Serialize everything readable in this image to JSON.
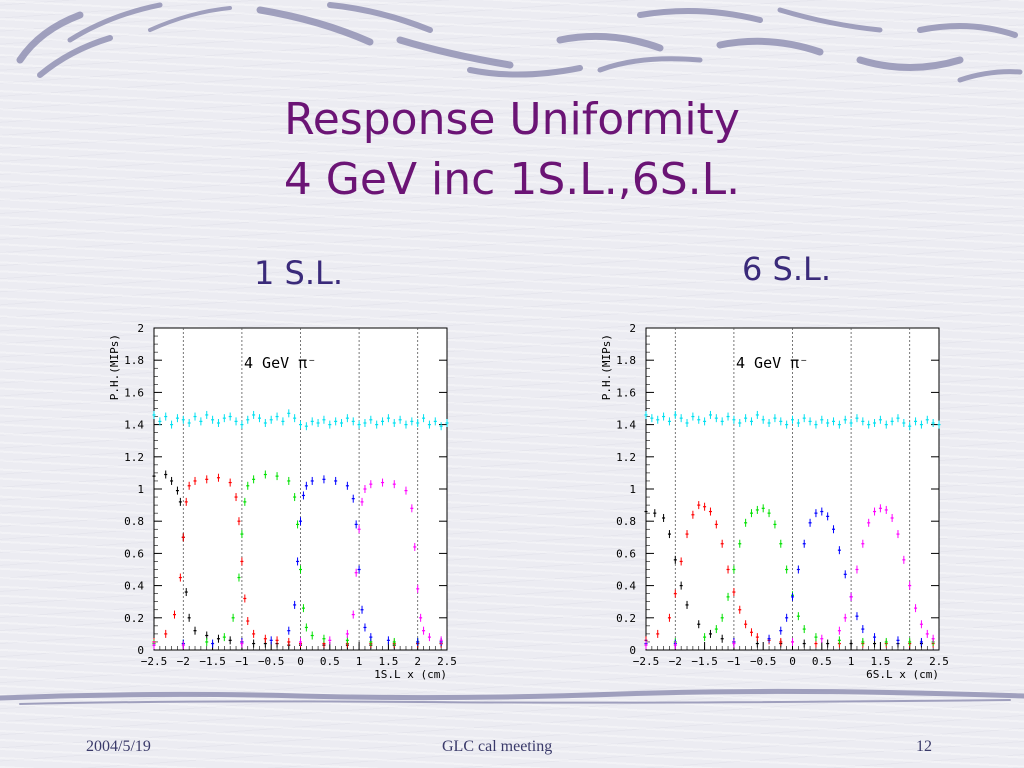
{
  "slide": {
    "title_line1": "Response Uniformity",
    "title_line2": "4 GeV inc 1S.L.,6S.L.",
    "label_left": "1 S.L.",
    "label_right": "6 S.L.",
    "footer": {
      "date": "2004/5/19",
      "center": "GLC cal meeting",
      "page": "12"
    },
    "colors": {
      "title": "#6b1475",
      "label": "#3a2a7a",
      "background": "#ececf2"
    }
  },
  "chart_data": [
    {
      "type": "scatter",
      "annotation": "4 GeV π⁻",
      "xlabel": "1S.L x (cm)",
      "ylabel": "P.H.(MIPs)",
      "xlim": [
        -2.5,
        2.5
      ],
      "ylim": [
        0,
        2
      ],
      "xticks": [
        "-2.5",
        "-2",
        "-1.5",
        "-1",
        "-0.5",
        "0",
        "0.5",
        "1",
        "1.5",
        "2",
        "2.5"
      ],
      "yticks": [
        "0",
        "0.2",
        "0.4",
        "0.6",
        "0.8",
        "1",
        "1.2",
        "1.4",
        "1.6",
        "1.8",
        "2"
      ],
      "dividers": [
        -2.0,
        -1.0,
        0.0,
        1.0,
        2.0
      ],
      "series": [
        {
          "color": "#000000",
          "x": [
            -2.5,
            -2.3,
            -2.2,
            -2.1,
            -2.05,
            -2.0,
            -1.95,
            -1.9,
            -1.8,
            -1.6,
            -1.4,
            -1.2,
            -1.0,
            -0.8,
            -0.6,
            -0.4,
            -0.2,
            0.0,
            0.4,
            0.8,
            1.2,
            1.6,
            2.0,
            2.4
          ],
          "y": [
            1.08,
            1.09,
            1.05,
            0.99,
            0.92,
            0.7,
            0.36,
            0.2,
            0.12,
            0.09,
            0.07,
            0.06,
            0.05,
            0.04,
            0.04,
            0.04,
            0.03,
            0.03,
            0.03,
            0.03,
            0.03,
            0.03,
            0.04,
            0.04
          ]
        },
        {
          "color": "#ff0000",
          "x": [
            -2.5,
            -2.3,
            -2.15,
            -2.05,
            -2.0,
            -1.95,
            -1.9,
            -1.8,
            -1.6,
            -1.4,
            -1.2,
            -1.1,
            -1.05,
            -1.0,
            -0.95,
            -0.9,
            -0.8,
            -0.6,
            -0.4,
            -0.2,
            0.0,
            0.4,
            0.8,
            1.2,
            1.6,
            2.0,
            2.4
          ],
          "y": [
            0.05,
            0.1,
            0.22,
            0.45,
            0.7,
            0.92,
            1.02,
            1.05,
            1.06,
            1.07,
            1.04,
            0.95,
            0.8,
            0.55,
            0.32,
            0.18,
            0.1,
            0.07,
            0.06,
            0.05,
            0.04,
            0.04,
            0.04,
            0.04,
            0.04,
            0.04,
            0.04
          ]
        },
        {
          "color": "#00e000",
          "x": [
            -2.5,
            -2.0,
            -1.6,
            -1.3,
            -1.15,
            -1.05,
            -1.0,
            -0.95,
            -0.9,
            -0.8,
            -0.6,
            -0.4,
            -0.2,
            -0.1,
            -0.05,
            0.0,
            0.05,
            0.1,
            0.2,
            0.4,
            0.8,
            1.2,
            1.6,
            2.0,
            2.4
          ],
          "y": [
            0.04,
            0.04,
            0.05,
            0.08,
            0.2,
            0.45,
            0.72,
            0.92,
            1.02,
            1.06,
            1.09,
            1.08,
            1.05,
            0.95,
            0.78,
            0.5,
            0.26,
            0.14,
            0.09,
            0.07,
            0.06,
            0.05,
            0.05,
            0.05,
            0.05
          ]
        },
        {
          "color": "#0000ff",
          "x": [
            -2.5,
            -2.0,
            -1.5,
            -1.0,
            -0.5,
            -0.2,
            -0.1,
            -0.05,
            0.0,
            0.05,
            0.1,
            0.2,
            0.4,
            0.6,
            0.8,
            0.9,
            0.95,
            1.0,
            1.05,
            1.1,
            1.2,
            1.5,
            2.0,
            2.4
          ],
          "y": [
            0.03,
            0.04,
            0.04,
            0.05,
            0.06,
            0.12,
            0.28,
            0.55,
            0.8,
            0.96,
            1.02,
            1.05,
            1.06,
            1.05,
            1.02,
            0.94,
            0.78,
            0.5,
            0.25,
            0.14,
            0.08,
            0.06,
            0.05,
            0.05
          ]
        },
        {
          "color": "#ff00ff",
          "x": [
            -2.5,
            -2.0,
            -1.0,
            0.0,
            0.5,
            0.8,
            0.9,
            0.95,
            1.0,
            1.05,
            1.1,
            1.2,
            1.4,
            1.6,
            1.8,
            1.9,
            1.95,
            2.0,
            2.05,
            2.1,
            2.2,
            2.4
          ],
          "y": [
            0.03,
            0.03,
            0.04,
            0.05,
            0.06,
            0.1,
            0.22,
            0.48,
            0.75,
            0.92,
            1.0,
            1.03,
            1.04,
            1.03,
            0.99,
            0.88,
            0.64,
            0.38,
            0.2,
            0.12,
            0.08,
            0.06
          ]
        },
        {
          "color": "#00e0f0",
          "x": [
            -2.5,
            -2.4,
            -2.3,
            -2.2,
            -2.1,
            -2.0,
            -1.9,
            -1.8,
            -1.7,
            -1.6,
            -1.5,
            -1.4,
            -1.3,
            -1.2,
            -1.1,
            -1.0,
            -0.9,
            -0.8,
            -0.7,
            -0.6,
            -0.5,
            -0.4,
            -0.3,
            -0.2,
            -0.1,
            0.0,
            0.1,
            0.2,
            0.3,
            0.4,
            0.5,
            0.6,
            0.7,
            0.8,
            0.9,
            1.0,
            1.1,
            1.2,
            1.3,
            1.4,
            1.5,
            1.6,
            1.7,
            1.8,
            1.9,
            2.0,
            2.1,
            2.2,
            2.3,
            2.4,
            2.5
          ],
          "y": [
            1.46,
            1.42,
            1.45,
            1.4,
            1.44,
            1.43,
            1.41,
            1.45,
            1.42,
            1.46,
            1.43,
            1.41,
            1.44,
            1.45,
            1.42,
            1.4,
            1.43,
            1.46,
            1.44,
            1.41,
            1.43,
            1.45,
            1.42,
            1.47,
            1.44,
            1.4,
            1.39,
            1.42,
            1.41,
            1.43,
            1.4,
            1.42,
            1.41,
            1.44,
            1.42,
            1.4,
            1.41,
            1.43,
            1.4,
            1.42,
            1.44,
            1.41,
            1.43,
            1.4,
            1.42,
            1.41,
            1.44,
            1.4,
            1.42,
            1.39,
            1.41
          ]
        }
      ]
    },
    {
      "type": "scatter",
      "annotation": "4 GeV π⁻",
      "xlabel": "6S.L x (cm)",
      "ylabel": "P.H.(MIPs)",
      "xlim": [
        -2.5,
        2.5
      ],
      "ylim": [
        0,
        2
      ],
      "xticks": [
        "-2.5",
        "-2",
        "-1.5",
        "-1",
        "-0.5",
        "0",
        "0.5",
        "1",
        "1.5",
        "2",
        "2.5"
      ],
      "yticks": [
        "0",
        "0.2",
        "0.4",
        "0.6",
        "0.8",
        "1",
        "1.2",
        "1.4",
        "1.6",
        "1.8",
        "2"
      ],
      "dividers": [
        -2.0,
        -1.0,
        0.0,
        1.0,
        2.0
      ],
      "series": [
        {
          "color": "#000000",
          "x": [
            -2.5,
            -2.35,
            -2.2,
            -2.1,
            -2.0,
            -1.9,
            -1.8,
            -1.6,
            -1.4,
            -1.2,
            -1.0,
            -0.6,
            -0.2,
            0.2,
            0.6,
            1.0,
            1.4,
            1.8,
            2.2
          ],
          "y": [
            0.86,
            0.85,
            0.82,
            0.72,
            0.56,
            0.4,
            0.28,
            0.16,
            0.1,
            0.07,
            0.05,
            0.04,
            0.04,
            0.04,
            0.04,
            0.04,
            0.04,
            0.04,
            0.04
          ]
        },
        {
          "color": "#ff0000",
          "x": [
            -2.5,
            -2.3,
            -2.1,
            -2.0,
            -1.9,
            -1.8,
            -1.7,
            -1.6,
            -1.5,
            -1.4,
            -1.3,
            -1.2,
            -1.1,
            -1.0,
            -0.9,
            -0.8,
            -0.7,
            -0.6,
            -0.4,
            -0.2,
            0.0,
            0.4,
            0.8,
            1.2,
            1.6,
            2.0,
            2.4
          ],
          "y": [
            0.06,
            0.1,
            0.2,
            0.35,
            0.55,
            0.72,
            0.84,
            0.9,
            0.89,
            0.86,
            0.78,
            0.66,
            0.5,
            0.36,
            0.25,
            0.16,
            0.11,
            0.08,
            0.06,
            0.05,
            0.05,
            0.04,
            0.04,
            0.04,
            0.04,
            0.04,
            0.04
          ]
        },
        {
          "color": "#00e000",
          "x": [
            -2.5,
            -2.0,
            -1.5,
            -1.3,
            -1.2,
            -1.1,
            -1.0,
            -0.9,
            -0.8,
            -0.7,
            -0.6,
            -0.5,
            -0.4,
            -0.3,
            -0.2,
            -0.1,
            0.0,
            0.1,
            0.2,
            0.4,
            0.8,
            1.2,
            1.6,
            2.0,
            2.4
          ],
          "y": [
            0.04,
            0.05,
            0.08,
            0.13,
            0.2,
            0.33,
            0.5,
            0.66,
            0.79,
            0.85,
            0.87,
            0.88,
            0.85,
            0.78,
            0.66,
            0.5,
            0.34,
            0.21,
            0.13,
            0.08,
            0.06,
            0.05,
            0.05,
            0.05,
            0.05
          ]
        },
        {
          "color": "#0000ff",
          "x": [
            -2.5,
            -2.0,
            -1.0,
            -0.4,
            -0.2,
            -0.1,
            0.0,
            0.1,
            0.2,
            0.3,
            0.4,
            0.5,
            0.6,
            0.7,
            0.8,
            0.9,
            1.0,
            1.1,
            1.2,
            1.4,
            1.8,
            2.2
          ],
          "y": [
            0.04,
            0.04,
            0.05,
            0.07,
            0.12,
            0.2,
            0.33,
            0.5,
            0.66,
            0.79,
            0.85,
            0.86,
            0.83,
            0.75,
            0.62,
            0.47,
            0.33,
            0.21,
            0.13,
            0.08,
            0.06,
            0.05
          ]
        },
        {
          "color": "#ff00ff",
          "x": [
            -2.5,
            -2.0,
            -1.0,
            0.0,
            0.5,
            0.8,
            0.9,
            1.0,
            1.1,
            1.2,
            1.3,
            1.4,
            1.5,
            1.6,
            1.7,
            1.8,
            1.9,
            2.0,
            2.1,
            2.2,
            2.3,
            2.4
          ],
          "y": [
            0.03,
            0.03,
            0.04,
            0.05,
            0.07,
            0.12,
            0.2,
            0.33,
            0.5,
            0.66,
            0.79,
            0.86,
            0.88,
            0.87,
            0.82,
            0.72,
            0.56,
            0.4,
            0.26,
            0.16,
            0.1,
            0.07
          ]
        },
        {
          "color": "#00e0f0",
          "x": [
            -2.5,
            -2.4,
            -2.3,
            -2.2,
            -2.1,
            -2.0,
            -1.9,
            -1.8,
            -1.7,
            -1.6,
            -1.5,
            -1.4,
            -1.3,
            -1.2,
            -1.1,
            -1.0,
            -0.9,
            -0.8,
            -0.7,
            -0.6,
            -0.5,
            -0.4,
            -0.3,
            -0.2,
            -0.1,
            0.0,
            0.1,
            0.2,
            0.3,
            0.4,
            0.5,
            0.6,
            0.7,
            0.8,
            0.9,
            1.0,
            1.1,
            1.2,
            1.3,
            1.4,
            1.5,
            1.6,
            1.7,
            1.8,
            1.9,
            2.0,
            2.1,
            2.2,
            2.3,
            2.4,
            2.5
          ],
          "y": [
            1.46,
            1.44,
            1.43,
            1.45,
            1.42,
            1.46,
            1.44,
            1.41,
            1.45,
            1.43,
            1.42,
            1.46,
            1.44,
            1.42,
            1.45,
            1.43,
            1.41,
            1.44,
            1.42,
            1.46,
            1.43,
            1.41,
            1.44,
            1.42,
            1.4,
            1.43,
            1.41,
            1.44,
            1.42,
            1.4,
            1.43,
            1.41,
            1.42,
            1.4,
            1.43,
            1.41,
            1.44,
            1.42,
            1.4,
            1.41,
            1.43,
            1.4,
            1.42,
            1.44,
            1.41,
            1.39,
            1.42,
            1.4,
            1.43,
            1.41,
            1.4
          ]
        }
      ]
    }
  ]
}
